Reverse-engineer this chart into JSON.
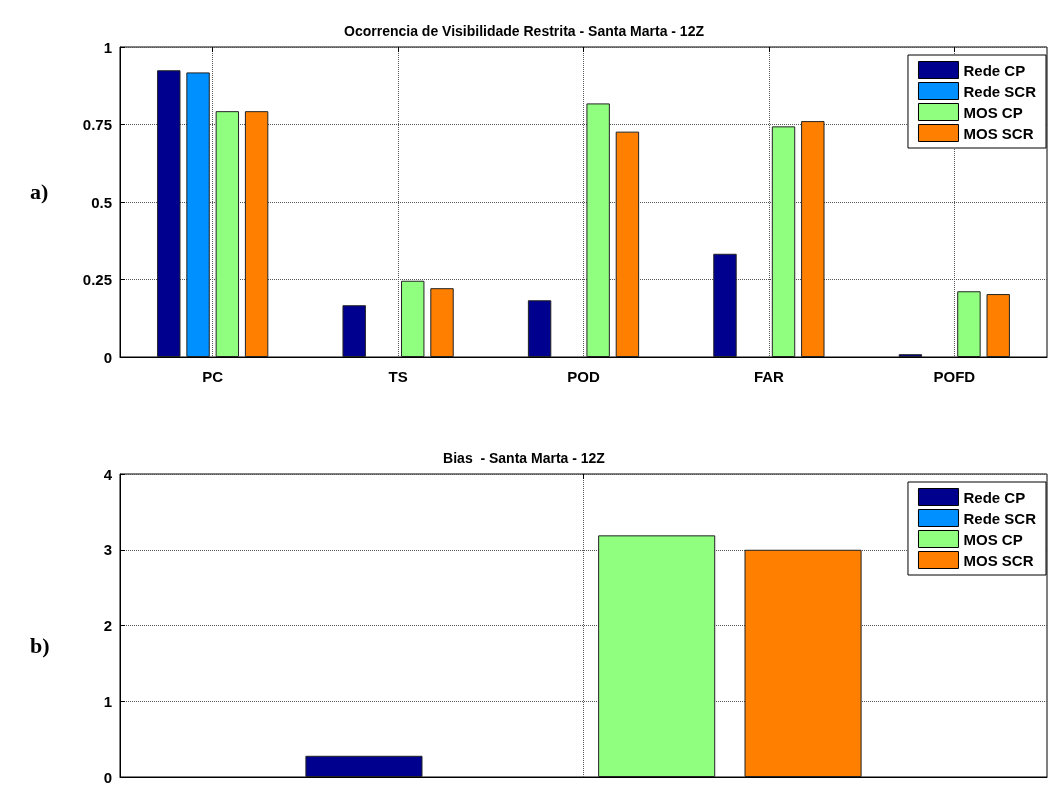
{
  "chart_data": [
    {
      "type": "bar",
      "title": "Ocorrencia de Visibilidade Restrita - Santa Marta - 12Z",
      "annotations": [
        "a)"
      ],
      "categories": [
        "PC",
        "TS",
        "POD",
        "FAR",
        "POFD"
      ],
      "series": [
        {
          "name": "Rede CP",
          "color": "#00008f",
          "values": [
            0.925,
            0.167,
            0.183,
            0.333,
            0.009
          ]
        },
        {
          "name": "Rede SCR",
          "color": "#0090ff",
          "values": [
            0.918,
            null,
            null,
            null,
            null
          ]
        },
        {
          "name": "MOS CP",
          "color": "#90ff80",
          "values": [
            0.793,
            0.246,
            0.818,
            0.744,
            0.212
          ]
        },
        {
          "name": "MOS SCR",
          "color": "#ff8000",
          "values": [
            0.793,
            0.222,
            0.727,
            0.761,
            0.203
          ]
        }
      ],
      "ylim": [
        0,
        1
      ],
      "yticks": [
        0,
        0.25,
        0.5,
        0.75,
        1
      ],
      "grid": true,
      "legend": "top right"
    },
    {
      "type": "bar",
      "title": "Bias  - Santa Marta - 12Z",
      "annotations": [
        "b)"
      ],
      "categories": [
        null
      ],
      "series": [
        {
          "name": "Rede CP",
          "color": "#00008f",
          "values": [
            0.28
          ]
        },
        {
          "name": "Rede SCR",
          "color": "#0090ff",
          "values": [
            null
          ]
        },
        {
          "name": "MOS CP",
          "color": "#90ff80",
          "values": [
            3.19
          ]
        },
        {
          "name": "MOS SCR",
          "color": "#ff8000",
          "values": [
            3.0
          ]
        }
      ],
      "ylim": [
        0,
        4
      ],
      "yticks": [
        0,
        1,
        2,
        3,
        4
      ],
      "grid": true,
      "legend": "top right"
    }
  ]
}
